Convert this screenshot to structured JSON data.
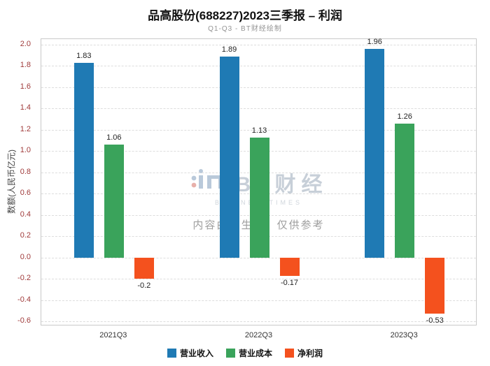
{
  "header": {
    "title": "品高股份(688227)2023三季报 – 利润",
    "subtitle": "Q1-Q3 - BT财经绘制"
  },
  "chart_data": {
    "type": "bar",
    "title": "品高股份(688227)2023三季报 – 利润",
    "subtitle": "Q1-Q3 - BT财经绘制",
    "categories": [
      "2021Q3",
      "2022Q3",
      "2023Q3"
    ],
    "series": [
      {
        "name": "营业收入",
        "color": "#1f7ab4",
        "values": [
          1.83,
          1.89,
          1.96
        ]
      },
      {
        "name": "营业成本",
        "color": "#3aa35b",
        "values": [
          1.06,
          1.13,
          1.26
        ]
      },
      {
        "name": "净利润",
        "color": "#f4511e",
        "values": [
          -0.2,
          -0.17,
          -0.53
        ]
      }
    ],
    "xlabel": "",
    "ylabel": "数额(人民币亿元)",
    "ylim": [
      -0.6,
      2.0
    ],
    "ytick_step": 0.2,
    "grid": true,
    "legend_position": "bottom"
  },
  "watermark": {
    "brand": "BT财经",
    "brand_sub": "BUSINESSTIMES",
    "disclaimer": "内容由AI生成，仅供参考"
  },
  "colors": {
    "ytick": "#a03b3b",
    "gridline": "#dddddd",
    "plot_border": "#c9c9c9"
  }
}
